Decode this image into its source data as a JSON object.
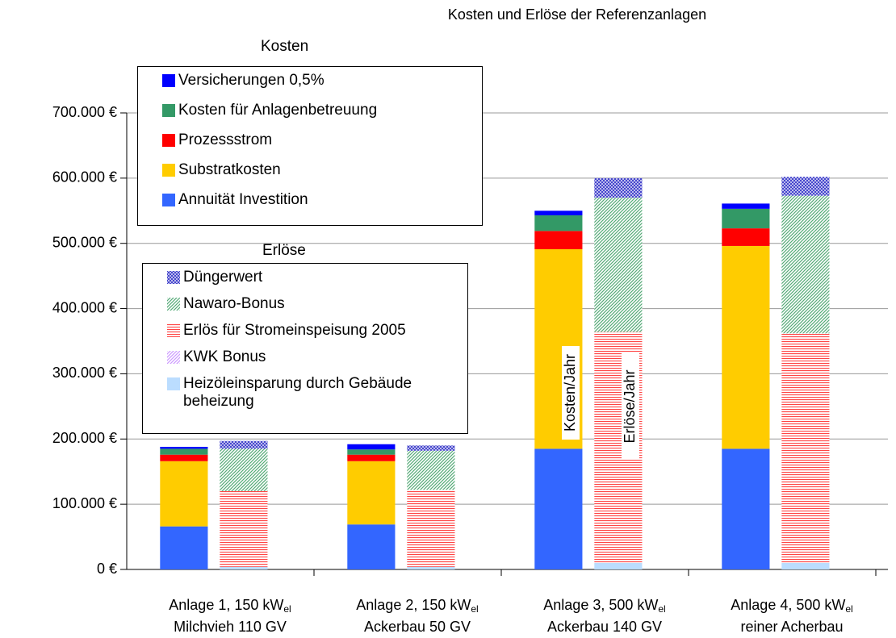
{
  "chart_data": {
    "type": "stacked_bar_groups",
    "title": "Kosten und Erlöse der Referenzanlagen",
    "categories": [
      [
        "Anlage 1, 150 kW",
        "el",
        "Milchvieh 110 GV"
      ],
      [
        "Anlage 2, 150 kW",
        "el",
        "Ackerbau 50 GV"
      ],
      [
        "Anlage 3, 500 kW",
        "el",
        "Ackerbau 140 GV"
      ],
      [
        "Anlage 4, 500 kW",
        "el",
        "reiner Acherbau"
      ]
    ],
    "stacks": [
      {
        "title": "Kosten",
        "series": [
          {
            "name": "Annuität Investition",
            "color": "#3366ff",
            "pattern": "solid",
            "values": [
              66000,
              69000,
              185000,
              185000
            ]
          },
          {
            "name": "Substratkosten",
            "color": "#ffcc00",
            "pattern": "solid",
            "values": [
              100000,
              97000,
              306000,
              311000
            ]
          },
          {
            "name": "Prozessstrom",
            "color": "#ff0000",
            "pattern": "solid",
            "values": [
              10000,
              10000,
              28000,
              27000
            ]
          },
          {
            "name": "Kosten für Anlagenbetreuung",
            "color": "#339966",
            "pattern": "solid",
            "values": [
              9000,
              8000,
              24000,
              30000
            ]
          },
          {
            "name": "Versicherungen 0,5%",
            "color": "#0000ff",
            "pattern": "solid",
            "values": [
              3000,
              8000,
              7000,
              8000
            ]
          }
        ]
      },
      {
        "title": "Erlöse",
        "series": [
          {
            "name": "Heizöleinsparung durch Gebäude beheizung",
            "color": "#bbddff",
            "pattern": "solid",
            "values": [
              4000,
              4000,
              10000,
              10000
            ]
          },
          {
            "name": "KWK Bonus",
            "color": "#cc99ff",
            "pattern": "diagonal",
            "values": [
              0,
              0,
              0,
              0
            ]
          },
          {
            "name": "Erlös für Stromeinspeisung 2005",
            "color": "#ff4444",
            "pattern": "horizontal",
            "values": [
              116000,
              118000,
              354000,
              352000
            ]
          },
          {
            "name": "Nawaro-Bonus",
            "color": "#55aa77",
            "pattern": "diagonal",
            "values": [
              65000,
              60000,
              206000,
              211000
            ]
          },
          {
            "name": "Düngerwert",
            "color": "#4444cc",
            "pattern": "crosshatch",
            "values": [
              12000,
              8000,
              30000,
              29000
            ]
          }
        ]
      }
    ],
    "annotations": [
      "Kosten/Jahr",
      "Erlöse/Jahr"
    ],
    "ylim": [
      0,
      700000
    ],
    "yticks": [
      {
        "value": 0,
        "label": "0 €"
      },
      {
        "value": 100000,
        "label": "100.000 €"
      },
      {
        "value": 200000,
        "label": "200.000 €"
      },
      {
        "value": 300000,
        "label": "300.000 €"
      },
      {
        "value": 400000,
        "label": "400.000 €"
      },
      {
        "value": 500000,
        "label": "500.000 €"
      },
      {
        "value": 600000,
        "label": "600.000 €"
      },
      {
        "value": 700000,
        "label": "700.000 €"
      }
    ],
    "grid": true
  }
}
